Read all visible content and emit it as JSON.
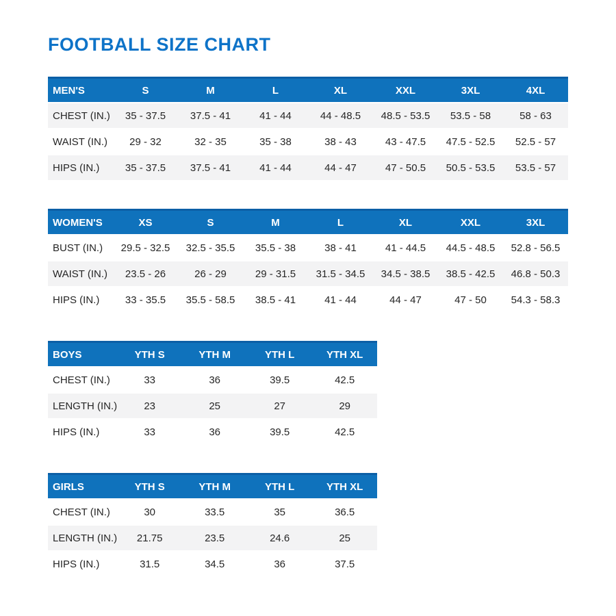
{
  "page": {
    "title": "FOOTBALL SIZE CHART"
  },
  "colors": {
    "title_blue": "#0e73c8",
    "header_blue": "#0f72bc",
    "header_top_border": "#0c5fa6",
    "shaded_row": "#f3f3f4",
    "body_text": "#262626"
  },
  "tables": [
    {
      "name": "mens",
      "header": [
        "MEN'S",
        "S",
        "M",
        "L",
        "XL",
        "XXL",
        "3XL",
        "4XL"
      ],
      "shade_pattern": "odd",
      "rows": [
        {
          "label": "CHEST (IN.)",
          "values": [
            "35 - 37.5",
            "37.5 - 41",
            "41 - 44",
            "44 - 48.5",
            "48.5 - 53.5",
            "53.5 - 58",
            "58 - 63"
          ]
        },
        {
          "label": "WAIST (IN.)",
          "values": [
            "29 - 32",
            "32 - 35",
            "35 - 38",
            "38 - 43",
            "43 - 47.5",
            "47.5 - 52.5",
            "52.5 - 57"
          ]
        },
        {
          "label": "HIPS (IN.)",
          "values": [
            "35 - 37.5",
            "37.5 - 41",
            "41 - 44",
            "44 - 47",
            "47 - 50.5",
            "50.5 - 53.5",
            "53.5 - 57"
          ]
        }
      ]
    },
    {
      "name": "womens",
      "header": [
        "WOMEN'S",
        "XS",
        "S",
        "M",
        "L",
        "XL",
        "XXL",
        "3XL"
      ],
      "shade_pattern": "even",
      "rows": [
        {
          "label": "BUST (IN.)",
          "values": [
            "29.5 - 32.5",
            "32.5 - 35.5",
            "35.5 - 38",
            "38 - 41",
            "41 - 44.5",
            "44.5 - 48.5",
            "52.8 - 56.5"
          ]
        },
        {
          "label": "WAIST (IN.)",
          "values": [
            "23.5 - 26",
            "26 - 29",
            "29 - 31.5",
            "31.5 - 34.5",
            "34.5 - 38.5",
            "38.5 - 42.5",
            "46.8 - 50.3"
          ]
        },
        {
          "label": "HIPS (IN.)",
          "values": [
            "33 - 35.5",
            "35.5 - 58.5",
            "38.5 - 41",
            "41 - 44",
            "44 - 47",
            "47 - 50",
            "54.3 - 58.3"
          ]
        }
      ]
    },
    {
      "name": "boys",
      "header": [
        "BOYS",
        "YTH S",
        "YTH M",
        "YTH L",
        "YTH XL"
      ],
      "shade_pattern": "even",
      "rows": [
        {
          "label": "CHEST (IN.)",
          "values": [
            "33",
            "36",
            "39.5",
            "42.5"
          ]
        },
        {
          "label": "LENGTH (IN.)",
          "values": [
            "23",
            "25",
            "27",
            "29"
          ]
        },
        {
          "label": "HIPS (IN.)",
          "values": [
            "33",
            "36",
            "39.5",
            "42.5"
          ]
        }
      ]
    },
    {
      "name": "girls",
      "header": [
        "GIRLS",
        "YTH S",
        "YTH M",
        "YTH L",
        "YTH XL"
      ],
      "shade_pattern": "even",
      "rows": [
        {
          "label": "CHEST (IN.)",
          "values": [
            "30",
            "33.5",
            "35",
            "36.5"
          ]
        },
        {
          "label": "LENGTH (IN.)",
          "values": [
            "21.75",
            "23.5",
            "24.6",
            "25"
          ]
        },
        {
          "label": "HIPS (IN.)",
          "values": [
            "31.5",
            "34.5",
            "36",
            "37.5"
          ]
        }
      ]
    }
  ]
}
